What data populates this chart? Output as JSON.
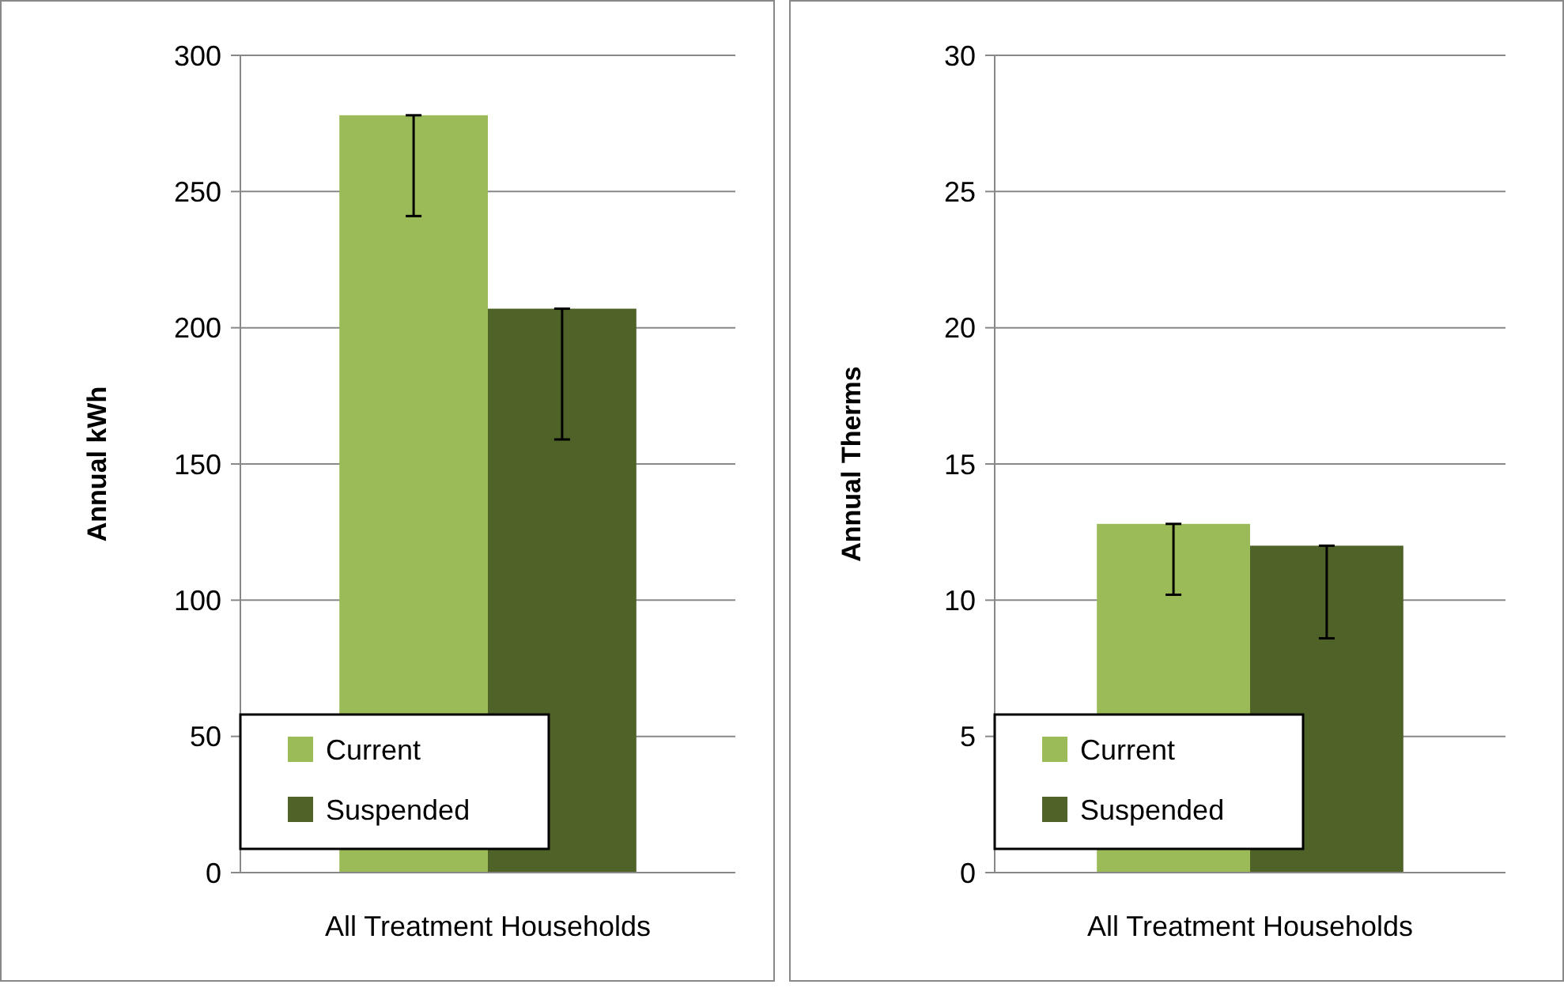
{
  "chart_data": [
    {
      "type": "bar",
      "ylabel": "Annual kWh",
      "categories": [
        "All Treatment Households"
      ],
      "series": [
        {
          "name": "Current",
          "color": "#9bbb59",
          "values": [
            278
          ],
          "errors": [
            [
              241,
              278
            ]
          ]
        },
        {
          "name": "Suspended",
          "color": "#4f6228",
          "values": [
            207
          ],
          "errors": [
            [
              159,
              207
            ]
          ]
        }
      ],
      "ylim": [
        0,
        300
      ],
      "yticks": [
        0,
        50,
        100,
        150,
        200,
        250,
        300
      ],
      "grid": "y",
      "legend": "bottom left"
    },
    {
      "type": "bar",
      "ylabel": "Annual Therms",
      "categories": [
        "All Treatment Households"
      ],
      "series": [
        {
          "name": "Current",
          "color": "#9bbb59",
          "values": [
            12.8
          ],
          "errors": [
            [
              10.2,
              12.8
            ]
          ]
        },
        {
          "name": "Suspended",
          "color": "#4f6228",
          "values": [
            12.0
          ],
          "errors": [
            [
              8.6,
              12.0
            ]
          ]
        }
      ],
      "ylim": [
        0,
        30
      ],
      "yticks": [
        0,
        5,
        10,
        15,
        20,
        25,
        30
      ],
      "grid": "y",
      "legend": "bottom left"
    }
  ]
}
